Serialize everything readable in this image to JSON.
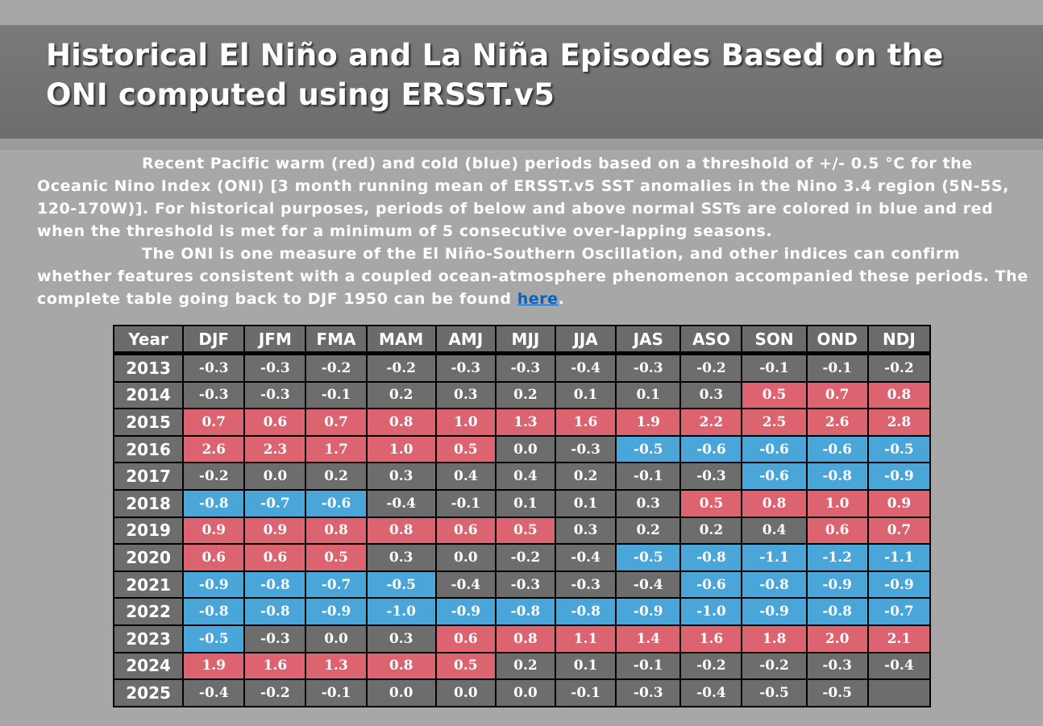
{
  "page": {
    "title_line1": "Historical El Niño and La Niña Episodes Based on the",
    "title_line2": "ONI computed using ERSST.v5",
    "paragraph1": "Recent Pacific warm (red) and cold (blue) periods based on a threshold of +/- 0.5 °C for the Oceanic Nino Index (ONI) [3 month running mean of ERSST.v5 SST anomalies in the Nino 3.4 region (5N-5S, 120-170W)]. For historical purposes, periods of below and above normal SSTs are colored in blue and red when the threshold is met for a minimum of 5 consecutive over-lapping seasons.",
    "paragraph2_before_link": "The ONI is one measure of the El Niño-Southern Oscillation, and other indices can confirm whether features consistent with a coupled ocean-atmosphere phenomenon accompanied these periods. The complete table going back to DJF 1950 can be found ",
    "link_text": "here",
    "paragraph2_after_link": "."
  },
  "colors": {
    "warm": "#dc6370",
    "cold": "#4aa5d9",
    "neutral": "#6d6d6d"
  },
  "table": {
    "headers": [
      "Year",
      "DJF",
      "JFM",
      "FMA",
      "MAM",
      "AMJ",
      "MJJ",
      "JJA",
      "JAS",
      "ASO",
      "SON",
      "OND",
      "NDJ"
    ],
    "rows": [
      {
        "year": "2013",
        "values": [
          "-0.3",
          "-0.3",
          "-0.2",
          "-0.2",
          "-0.3",
          "-0.3",
          "-0.4",
          "-0.3",
          "-0.2",
          "-0.1",
          "-0.1",
          "-0.2"
        ],
        "episodes": [
          "neutral",
          "neutral",
          "neutral",
          "neutral",
          "neutral",
          "neutral",
          "neutral",
          "neutral",
          "neutral",
          "neutral",
          "neutral",
          "neutral"
        ]
      },
      {
        "year": "2014",
        "values": [
          "-0.3",
          "-0.3",
          "-0.1",
          "0.2",
          "0.3",
          "0.2",
          "0.1",
          "0.1",
          "0.3",
          "0.5",
          "0.7",
          "0.8"
        ],
        "episodes": [
          "neutral",
          "neutral",
          "neutral",
          "neutral",
          "neutral",
          "neutral",
          "neutral",
          "neutral",
          "neutral",
          "warm",
          "warm",
          "warm"
        ]
      },
      {
        "year": "2015",
        "values": [
          "0.7",
          "0.6",
          "0.7",
          "0.8",
          "1.0",
          "1.3",
          "1.6",
          "1.9",
          "2.2",
          "2.5",
          "2.6",
          "2.8"
        ],
        "episodes": [
          "warm",
          "warm",
          "warm",
          "warm",
          "warm",
          "warm",
          "warm",
          "warm",
          "warm",
          "warm",
          "warm",
          "warm"
        ]
      },
      {
        "year": "2016",
        "values": [
          "2.6",
          "2.3",
          "1.7",
          "1.0",
          "0.5",
          "0.0",
          "-0.3",
          "-0.5",
          "-0.6",
          "-0.6",
          "-0.6",
          "-0.5"
        ],
        "episodes": [
          "warm",
          "warm",
          "warm",
          "warm",
          "warm",
          "neutral",
          "neutral",
          "cold",
          "cold",
          "cold",
          "cold",
          "cold"
        ]
      },
      {
        "year": "2017",
        "values": [
          "-0.2",
          "0.0",
          "0.2",
          "0.3",
          "0.4",
          "0.4",
          "0.2",
          "-0.1",
          "-0.3",
          "-0.6",
          "-0.8",
          "-0.9"
        ],
        "episodes": [
          "neutral",
          "neutral",
          "neutral",
          "neutral",
          "neutral",
          "neutral",
          "neutral",
          "neutral",
          "neutral",
          "cold",
          "cold",
          "cold"
        ]
      },
      {
        "year": "2018",
        "values": [
          "-0.8",
          "-0.7",
          "-0.6",
          "-0.4",
          "-0.1",
          "0.1",
          "0.1",
          "0.3",
          "0.5",
          "0.8",
          "1.0",
          "0.9"
        ],
        "episodes": [
          "cold",
          "cold",
          "cold",
          "neutral",
          "neutral",
          "neutral",
          "neutral",
          "neutral",
          "warm",
          "warm",
          "warm",
          "warm"
        ]
      },
      {
        "year": "2019",
        "values": [
          "0.9",
          "0.9",
          "0.8",
          "0.8",
          "0.6",
          "0.5",
          "0.3",
          "0.2",
          "0.2",
          "0.4",
          "0.6",
          "0.7"
        ],
        "episodes": [
          "warm",
          "warm",
          "warm",
          "warm",
          "warm",
          "warm",
          "neutral",
          "neutral",
          "neutral",
          "neutral",
          "warm",
          "warm"
        ]
      },
      {
        "year": "2020",
        "values": [
          "0.6",
          "0.6",
          "0.5",
          "0.3",
          "0.0",
          "-0.2",
          "-0.4",
          "-0.5",
          "-0.8",
          "-1.1",
          "-1.2",
          "-1.1"
        ],
        "episodes": [
          "warm",
          "warm",
          "warm",
          "neutral",
          "neutral",
          "neutral",
          "neutral",
          "cold",
          "cold",
          "cold",
          "cold",
          "cold"
        ]
      },
      {
        "year": "2021",
        "values": [
          "-0.9",
          "-0.8",
          "-0.7",
          "-0.5",
          "-0.4",
          "-0.3",
          "-0.3",
          "-0.4",
          "-0.6",
          "-0.8",
          "-0.9",
          "-0.9"
        ],
        "episodes": [
          "cold",
          "cold",
          "cold",
          "cold",
          "neutral",
          "neutral",
          "neutral",
          "neutral",
          "cold",
          "cold",
          "cold",
          "cold"
        ]
      },
      {
        "year": "2022",
        "values": [
          "-0.8",
          "-0.8",
          "-0.9",
          "-1.0",
          "-0.9",
          "-0.8",
          "-0.8",
          "-0.9",
          "-1.0",
          "-0.9",
          "-0.8",
          "-0.7"
        ],
        "episodes": [
          "cold",
          "cold",
          "cold",
          "cold",
          "cold",
          "cold",
          "cold",
          "cold",
          "cold",
          "cold",
          "cold",
          "cold"
        ]
      },
      {
        "year": "2023",
        "values": [
          "-0.5",
          "-0.3",
          "0.0",
          "0.3",
          "0.6",
          "0.8",
          "1.1",
          "1.4",
          "1.6",
          "1.8",
          "2.0",
          "2.1"
        ],
        "episodes": [
          "cold",
          "neutral",
          "neutral",
          "neutral",
          "warm",
          "warm",
          "warm",
          "warm",
          "warm",
          "warm",
          "warm",
          "warm"
        ]
      },
      {
        "year": "2024",
        "values": [
          "1.9",
          "1.6",
          "1.3",
          "0.8",
          "0.5",
          "0.2",
          "0.1",
          "-0.1",
          "-0.2",
          "-0.2",
          "-0.3",
          "-0.4"
        ],
        "episodes": [
          "warm",
          "warm",
          "warm",
          "warm",
          "warm",
          "neutral",
          "neutral",
          "neutral",
          "neutral",
          "neutral",
          "neutral",
          "neutral"
        ]
      },
      {
        "year": "2025",
        "values": [
          "-0.4",
          "-0.2",
          "-0.1",
          "0.0",
          "0.0",
          "0.0",
          "-0.1",
          "-0.3",
          "-0.4",
          "-0.5",
          "-0.5",
          ""
        ],
        "episodes": [
          "neutral",
          "neutral",
          "neutral",
          "neutral",
          "neutral",
          "neutral",
          "neutral",
          "neutral",
          "neutral",
          "neutral",
          "neutral",
          "empty"
        ]
      }
    ]
  }
}
